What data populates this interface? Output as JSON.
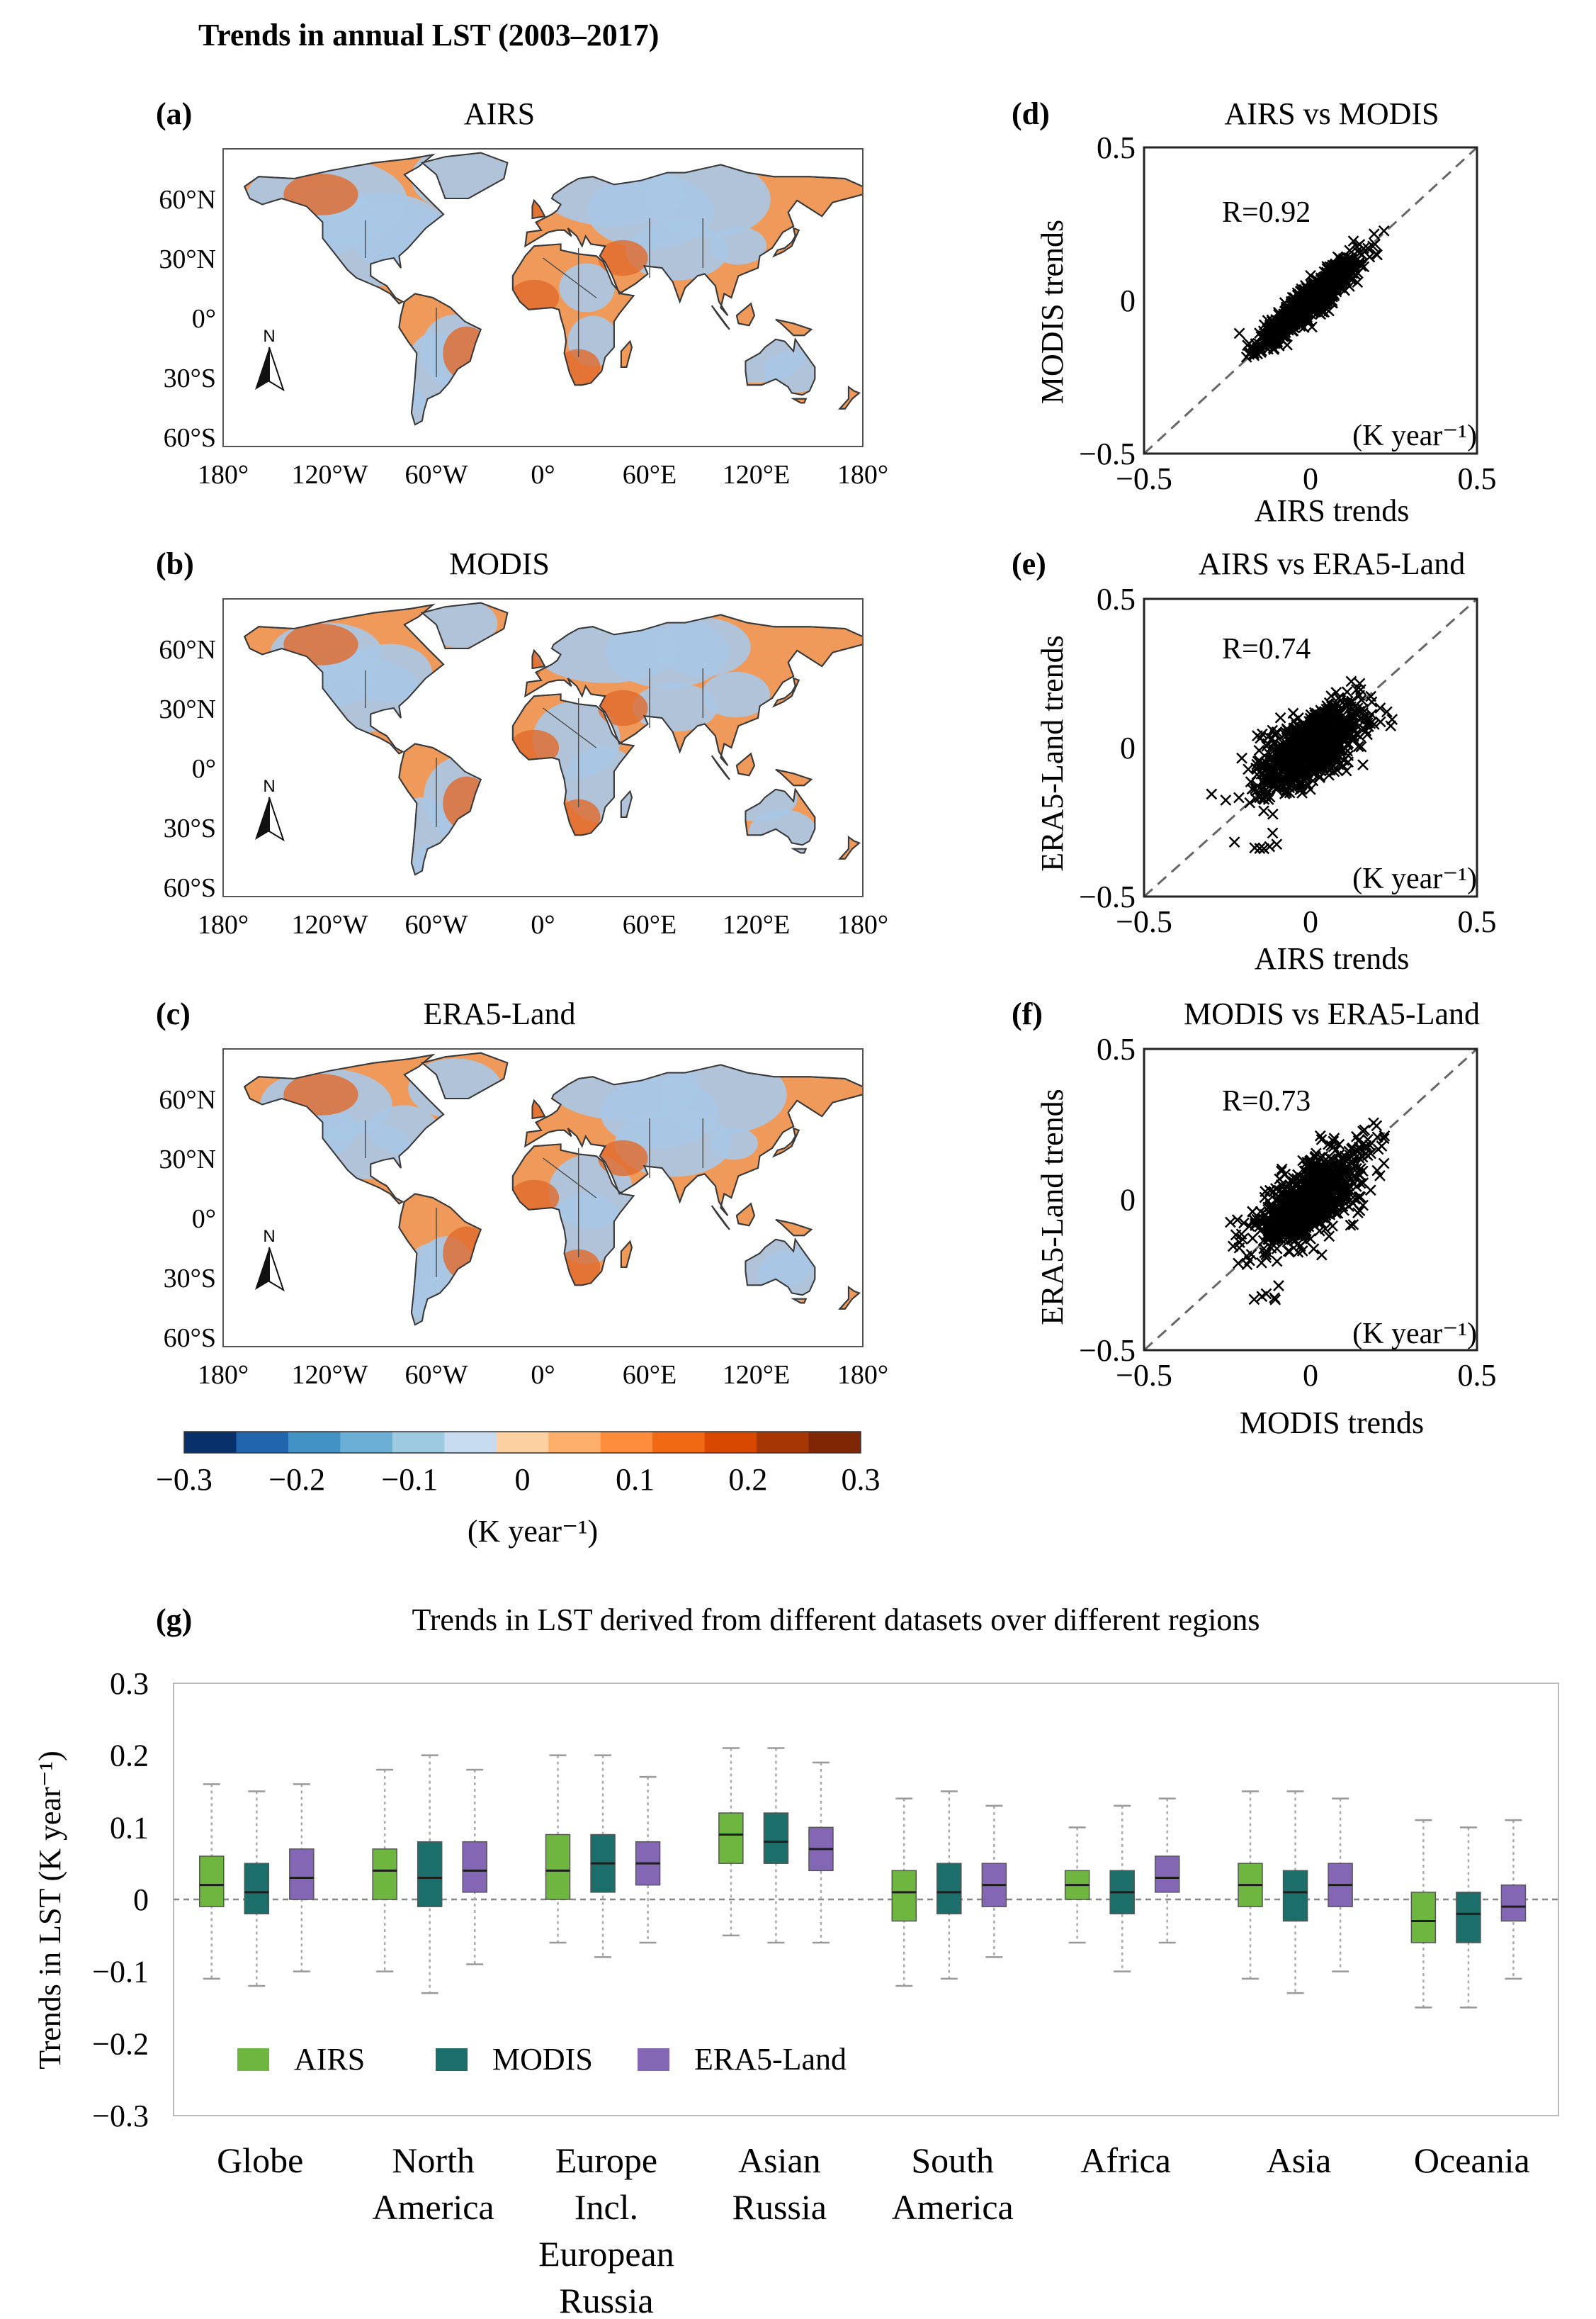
{
  "figure_title": "Trends in annual LST (2003–2017)",
  "colors": {
    "airs": "#6fb640",
    "modis": "#1b6e6a",
    "era5": "#8367b5",
    "land_warm": "#ef9a5a",
    "land_cool": "#a9c8e6",
    "median": "#1e1e1e"
  },
  "maps": [
    {
      "letter": "(a)",
      "title": "AIRS"
    },
    {
      "letter": "(b)",
      "title": "MODIS"
    },
    {
      "letter": "(c)",
      "title": "ERA5-Land"
    }
  ],
  "map_axes": {
    "lat_labels": [
      "60°N",
      "30°N",
      "0°",
      "30°S",
      "60°S"
    ],
    "lon_labels": [
      "180°",
      "120°W",
      "60°W",
      "0°",
      "60°E",
      "120°E",
      "180°"
    ],
    "north_arrow": "N"
  },
  "colorbar": {
    "ticks": [
      "−0.3",
      "−0.2",
      "−0.1",
      "0",
      "0.1",
      "0.2",
      "0.3"
    ],
    "colors": [
      "#08306b",
      "#2166ac",
      "#4292c6",
      "#6baed6",
      "#9ecae1",
      "#c6dbef",
      "#fdd0a2",
      "#fdae6b",
      "#fd8d3c",
      "#f16913",
      "#d94801",
      "#a63603",
      "#7f2704"
    ],
    "label": "(K year⁻¹)"
  },
  "scatter_panels": [
    {
      "letter": "(d)",
      "title": "AIRS vs MODIS",
      "xlabel": "AIRS trends",
      "ylabel": "MODIS trends",
      "r_label": "R=0.92",
      "units": "(K year⁻¹)"
    },
    {
      "letter": "(e)",
      "title": "AIRS vs ERA5-Land",
      "xlabel": "AIRS trends",
      "ylabel": "ERA5-Land trends",
      "r_label": "R=0.74",
      "units": "(K year⁻¹)"
    },
    {
      "letter": "(f)",
      "title": "MODIS vs ERA5-Land",
      "xlabel": "MODIS trends",
      "ylabel": "ERA5-Land trends",
      "r_label": "R=0.73",
      "units": "(K year⁻¹)"
    }
  ],
  "scatter_ticks": {
    "x": [
      "−0.5",
      "0",
      "0.5"
    ],
    "y": [
      "0.5",
      "0",
      "−0.5"
    ]
  },
  "boxplot_panel": {
    "letter": "(g)",
    "title": "Trends in LST derived from different datasets over different regions"
  },
  "chart_data": [
    {
      "type": "scatter",
      "panel": "(d)",
      "title": "AIRS vs MODIS",
      "xlabel": "AIRS trends",
      "ylabel": "MODIS trends",
      "xlim": [
        -0.5,
        0.5
      ],
      "ylim": [
        -0.5,
        0.5
      ],
      "correlation": 0.92,
      "cloud": {
        "x_center": 0.0,
        "y_center": 0.0,
        "spread_along": 0.1,
        "spread_across": 0.02
      }
    },
    {
      "type": "scatter",
      "panel": "(e)",
      "title": "AIRS vs ERA5-Land",
      "xlabel": "AIRS trends",
      "ylabel": "ERA5-Land trends",
      "xlim": [
        -0.5,
        0.5
      ],
      "ylim": [
        -0.5,
        0.5
      ],
      "correlation": 0.74,
      "cloud": {
        "x_center": 0.0,
        "y_center": 0.0,
        "spread_along": 0.1,
        "spread_across": 0.045
      }
    },
    {
      "type": "scatter",
      "panel": "(f)",
      "title": "MODIS vs ERA5-Land",
      "xlabel": "MODIS trends",
      "ylabel": "ERA5-Land trends",
      "xlim": [
        -0.5,
        0.5
      ],
      "ylim": [
        -0.5,
        0.5
      ],
      "correlation": 0.73,
      "cloud": {
        "x_center": 0.0,
        "y_center": 0.0,
        "spread_along": 0.1,
        "spread_across": 0.045
      }
    },
    {
      "type": "box",
      "panel": "(g)",
      "title": "Trends in LST derived from different datasets over different regions",
      "ylabel": "Trends in LST (K year⁻¹)",
      "ylim": [
        -0.3,
        0.3
      ],
      "yticks": [
        "0.3",
        "0.2",
        "0.1",
        "0",
        "−0.1",
        "−0.2",
        "−0.3"
      ],
      "ytick_values": [
        0.3,
        0.2,
        0.1,
        0,
        -0.1,
        -0.2,
        -0.3
      ],
      "categories": [
        [
          "Globe"
        ],
        [
          "North",
          "America"
        ],
        [
          "Europe",
          "Incl.",
          "European",
          "Russia"
        ],
        [
          "Asian",
          "Russia"
        ],
        [
          "South",
          "America"
        ],
        [
          "Africa"
        ],
        [
          "Asia"
        ],
        [
          "Oceania"
        ]
      ],
      "series": [
        {
          "name": "AIRS",
          "boxes": [
            {
              "min": -0.11,
              "q1": -0.01,
              "median": 0.02,
              "q3": 0.06,
              "max": 0.16
            },
            {
              "min": -0.1,
              "q1": 0.0,
              "median": 0.04,
              "q3": 0.07,
              "max": 0.18
            },
            {
              "min": -0.06,
              "q1": 0.0,
              "median": 0.04,
              "q3": 0.09,
              "max": 0.2
            },
            {
              "min": -0.05,
              "q1": 0.05,
              "median": 0.09,
              "q3": 0.12,
              "max": 0.21
            },
            {
              "min": -0.12,
              "q1": -0.03,
              "median": 0.01,
              "q3": 0.04,
              "max": 0.14
            },
            {
              "min": -0.06,
              "q1": 0.0,
              "median": 0.02,
              "q3": 0.04,
              "max": 0.1
            },
            {
              "min": -0.11,
              "q1": -0.01,
              "median": 0.02,
              "q3": 0.05,
              "max": 0.15
            },
            {
              "min": -0.15,
              "q1": -0.06,
              "median": -0.03,
              "q3": 0.01,
              "max": 0.11
            }
          ]
        },
        {
          "name": "MODIS",
          "boxes": [
            {
              "min": -0.12,
              "q1": -0.02,
              "median": 0.01,
              "q3": 0.05,
              "max": 0.15
            },
            {
              "min": -0.13,
              "q1": -0.01,
              "median": 0.03,
              "q3": 0.08,
              "max": 0.2
            },
            {
              "min": -0.08,
              "q1": 0.01,
              "median": 0.05,
              "q3": 0.09,
              "max": 0.2
            },
            {
              "min": -0.06,
              "q1": 0.05,
              "median": 0.08,
              "q3": 0.12,
              "max": 0.21
            },
            {
              "min": -0.11,
              "q1": -0.02,
              "median": 0.01,
              "q3": 0.05,
              "max": 0.15
            },
            {
              "min": -0.1,
              "q1": -0.02,
              "median": 0.01,
              "q3": 0.04,
              "max": 0.13
            },
            {
              "min": -0.13,
              "q1": -0.03,
              "median": 0.01,
              "q3": 0.04,
              "max": 0.15
            },
            {
              "min": -0.15,
              "q1": -0.06,
              "median": -0.02,
              "q3": 0.01,
              "max": 0.1
            }
          ]
        },
        {
          "name": "ERA5-Land",
          "boxes": [
            {
              "min": -0.1,
              "q1": 0.0,
              "median": 0.03,
              "q3": 0.07,
              "max": 0.16
            },
            {
              "min": -0.09,
              "q1": 0.01,
              "median": 0.04,
              "q3": 0.08,
              "max": 0.18
            },
            {
              "min": -0.06,
              "q1": 0.02,
              "median": 0.05,
              "q3": 0.08,
              "max": 0.17
            },
            {
              "min": -0.06,
              "q1": 0.04,
              "median": 0.07,
              "q3": 0.1,
              "max": 0.19
            },
            {
              "min": -0.08,
              "q1": -0.01,
              "median": 0.02,
              "q3": 0.05,
              "max": 0.13
            },
            {
              "min": -0.06,
              "q1": 0.01,
              "median": 0.03,
              "q3": 0.06,
              "max": 0.14
            },
            {
              "min": -0.1,
              "q1": -0.01,
              "median": 0.02,
              "q3": 0.05,
              "max": 0.14
            },
            {
              "min": -0.11,
              "q1": -0.03,
              "median": -0.01,
              "q3": 0.02,
              "max": 0.11
            }
          ]
        }
      ],
      "legend": {
        "position": "lower-left",
        "entries": [
          "AIRS",
          "MODIS",
          "ERA5-Land"
        ]
      }
    }
  ]
}
